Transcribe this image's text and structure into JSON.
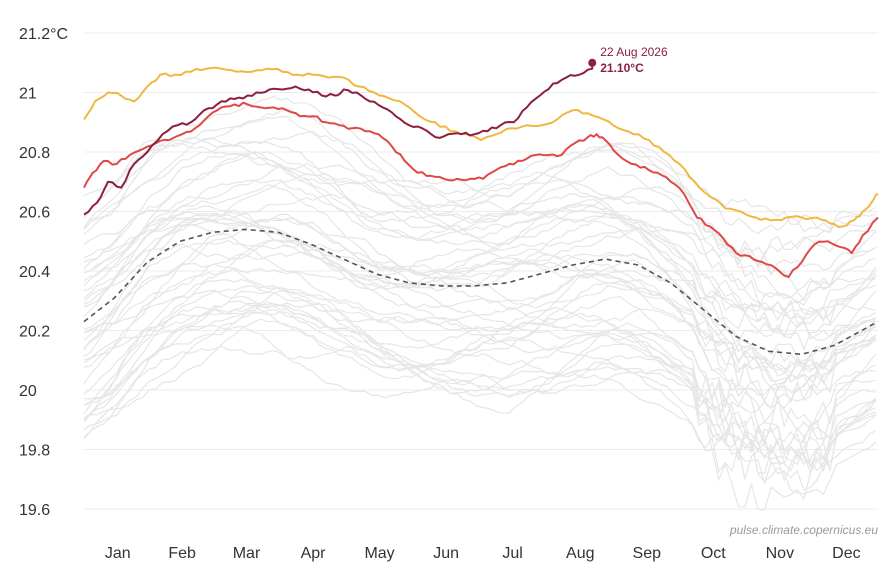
{
  "chart_data": {
    "type": "line",
    "title": "",
    "xlabel": "",
    "ylabel": "",
    "y_unit_suffix": "°C",
    "ylim": [
      19.6,
      21.2
    ],
    "yticks": [
      19.6,
      19.8,
      20,
      20.2,
      20.4,
      20.6,
      20.8,
      21,
      21.2
    ],
    "ytick_labels": [
      "19.6",
      "19.8",
      "20",
      "20.2",
      "20.4",
      "20.6",
      "20.8",
      "21",
      "21.2°C"
    ],
    "grid": true,
    "months": [
      "Jan",
      "Feb",
      "Mar",
      "Apr",
      "May",
      "Jun",
      "Jul",
      "Aug",
      "Sep",
      "Oct",
      "Nov",
      "Dec"
    ],
    "x_unit": "day of year",
    "series": [
      {
        "role": "current-year",
        "color": "#8c1f3f",
        "style": "solid",
        "points": [
          [
            1,
            20.59
          ],
          [
            7,
            20.63
          ],
          [
            12,
            20.7
          ],
          [
            18,
            20.68
          ],
          [
            24,
            20.76
          ],
          [
            30,
            20.8
          ],
          [
            37,
            20.86
          ],
          [
            44,
            20.89
          ],
          [
            50,
            20.9
          ],
          [
            56,
            20.94
          ],
          [
            62,
            20.96
          ],
          [
            68,
            20.98
          ],
          [
            74,
            20.98
          ],
          [
            80,
            21.0
          ],
          [
            86,
            21.01
          ],
          [
            92,
            21.01
          ],
          [
            98,
            21.02
          ],
          [
            104,
            21.01
          ],
          [
            110,
            20.99
          ],
          [
            116,
            20.99
          ],
          [
            120,
            21.01
          ],
          [
            126,
            21.0
          ],
          [
            132,
            20.97
          ],
          [
            138,
            20.95
          ],
          [
            144,
            20.92
          ],
          [
            150,
            20.89
          ],
          [
            156,
            20.88
          ],
          [
            162,
            20.85
          ],
          [
            168,
            20.86
          ],
          [
            174,
            20.86
          ],
          [
            180,
            20.86
          ],
          [
            186,
            20.87
          ],
          [
            192,
            20.89
          ],
          [
            198,
            20.9
          ],
          [
            204,
            20.95
          ],
          [
            210,
            20.99
          ],
          [
            216,
            21.03
          ],
          [
            222,
            21.05
          ],
          [
            228,
            21.06
          ],
          [
            234,
            21.08
          ],
          [
            234,
            21.1
          ]
        ]
      },
      {
        "role": "orange-year",
        "color": "#f0b840",
        "style": "solid",
        "points": [
          [
            1,
            20.91
          ],
          [
            6,
            20.97
          ],
          [
            12,
            21.0
          ],
          [
            18,
            20.99
          ],
          [
            24,
            20.97
          ],
          [
            30,
            21.02
          ],
          [
            36,
            21.06
          ],
          [
            43,
            21.06
          ],
          [
            50,
            21.07
          ],
          [
            57,
            21.08
          ],
          [
            64,
            21.08
          ],
          [
            71,
            21.07
          ],
          [
            78,
            21.07
          ],
          [
            85,
            21.08
          ],
          [
            92,
            21.07
          ],
          [
            99,
            21.06
          ],
          [
            106,
            21.06
          ],
          [
            113,
            21.05
          ],
          [
            120,
            21.05
          ],
          [
            127,
            21.02
          ],
          [
            134,
            21.0
          ],
          [
            141,
            20.98
          ],
          [
            148,
            20.96
          ],
          [
            155,
            20.92
          ],
          [
            162,
            20.9
          ],
          [
            169,
            20.87
          ],
          [
            176,
            20.86
          ],
          [
            183,
            20.84
          ],
          [
            190,
            20.86
          ],
          [
            197,
            20.88
          ],
          [
            204,
            20.89
          ],
          [
            211,
            20.89
          ],
          [
            218,
            20.91
          ],
          [
            225,
            20.94
          ],
          [
            232,
            20.93
          ],
          [
            239,
            20.91
          ],
          [
            246,
            20.88
          ],
          [
            253,
            20.86
          ],
          [
            260,
            20.84
          ],
          [
            267,
            20.8
          ],
          [
            274,
            20.76
          ],
          [
            281,
            20.7
          ],
          [
            288,
            20.65
          ],
          [
            295,
            20.61
          ],
          [
            302,
            20.6
          ],
          [
            309,
            20.58
          ],
          [
            316,
            20.57
          ],
          [
            323,
            20.58
          ],
          [
            330,
            20.58
          ],
          [
            337,
            20.58
          ],
          [
            343,
            20.56
          ],
          [
            349,
            20.55
          ],
          [
            354,
            20.57
          ],
          [
            358,
            20.6
          ],
          [
            362,
            20.63
          ],
          [
            365,
            20.66
          ]
        ]
      },
      {
        "role": "red-year",
        "color": "#e04848",
        "style": "solid",
        "points": [
          [
            1,
            20.68
          ],
          [
            5,
            20.73
          ],
          [
            10,
            20.77
          ],
          [
            16,
            20.76
          ],
          [
            22,
            20.79
          ],
          [
            28,
            20.81
          ],
          [
            34,
            20.83
          ],
          [
            40,
            20.84
          ],
          [
            46,
            20.86
          ],
          [
            52,
            20.88
          ],
          [
            58,
            20.92
          ],
          [
            64,
            20.95
          ],
          [
            70,
            20.96
          ],
          [
            76,
            20.96
          ],
          [
            82,
            20.95
          ],
          [
            88,
            20.95
          ],
          [
            94,
            20.94
          ],
          [
            100,
            20.92
          ],
          [
            106,
            20.92
          ],
          [
            112,
            20.9
          ],
          [
            118,
            20.89
          ],
          [
            124,
            20.88
          ],
          [
            130,
            20.87
          ],
          [
            136,
            20.86
          ],
          [
            142,
            20.82
          ],
          [
            148,
            20.77
          ],
          [
            154,
            20.73
          ],
          [
            160,
            20.72
          ],
          [
            166,
            20.71
          ],
          [
            172,
            20.71
          ],
          [
            178,
            20.71
          ],
          [
            184,
            20.71
          ],
          [
            190,
            20.74
          ],
          [
            196,
            20.76
          ],
          [
            202,
            20.77
          ],
          [
            208,
            20.79
          ],
          [
            214,
            20.79
          ],
          [
            220,
            20.79
          ],
          [
            226,
            20.83
          ],
          [
            232,
            20.85
          ],
          [
            236,
            20.86
          ],
          [
            240,
            20.84
          ],
          [
            246,
            20.79
          ],
          [
            252,
            20.76
          ],
          [
            258,
            20.75
          ],
          [
            264,
            20.73
          ],
          [
            270,
            20.7
          ],
          [
            276,
            20.66
          ],
          [
            282,
            20.58
          ],
          [
            288,
            20.55
          ],
          [
            294,
            20.51
          ],
          [
            300,
            20.46
          ],
          [
            306,
            20.45
          ],
          [
            312,
            20.43
          ],
          [
            318,
            20.41
          ],
          [
            324,
            20.38
          ],
          [
            330,
            20.43
          ],
          [
            336,
            20.49
          ],
          [
            342,
            20.5
          ],
          [
            348,
            20.48
          ],
          [
            353,
            20.46
          ],
          [
            358,
            20.52
          ],
          [
            365,
            20.58
          ]
        ]
      },
      {
        "role": "climatology-mean",
        "color": "#555555",
        "style": "dashed",
        "points": [
          [
            1,
            20.23
          ],
          [
            15,
            20.31
          ],
          [
            30,
            20.43
          ],
          [
            45,
            20.5
          ],
          [
            60,
            20.53
          ],
          [
            75,
            20.54
          ],
          [
            90,
            20.53
          ],
          [
            105,
            20.49
          ],
          [
            120,
            20.44
          ],
          [
            135,
            20.39
          ],
          [
            150,
            20.36
          ],
          [
            165,
            20.35
          ],
          [
            180,
            20.35
          ],
          [
            195,
            20.36
          ],
          [
            210,
            20.39
          ],
          [
            225,
            20.42
          ],
          [
            240,
            20.44
          ],
          [
            255,
            20.42
          ],
          [
            270,
            20.36
          ],
          [
            285,
            20.27
          ],
          [
            300,
            20.18
          ],
          [
            315,
            20.13
          ],
          [
            330,
            20.12
          ],
          [
            345,
            20.15
          ],
          [
            355,
            20.19
          ],
          [
            365,
            20.23
          ]
        ]
      }
    ],
    "background_years": {
      "count": 44,
      "color": "#e6e6e6",
      "range_jan": [
        19.82,
        20.52
      ],
      "range_jul": [
        19.95,
        20.62
      ],
      "range_nov": [
        19.62,
        20.6
      ]
    },
    "annotation": {
      "date": "22 Aug 2026",
      "value": "21.10°C",
      "day": 234,
      "y": 21.1
    },
    "source": "pulse.climate.copernicus.eu"
  }
}
